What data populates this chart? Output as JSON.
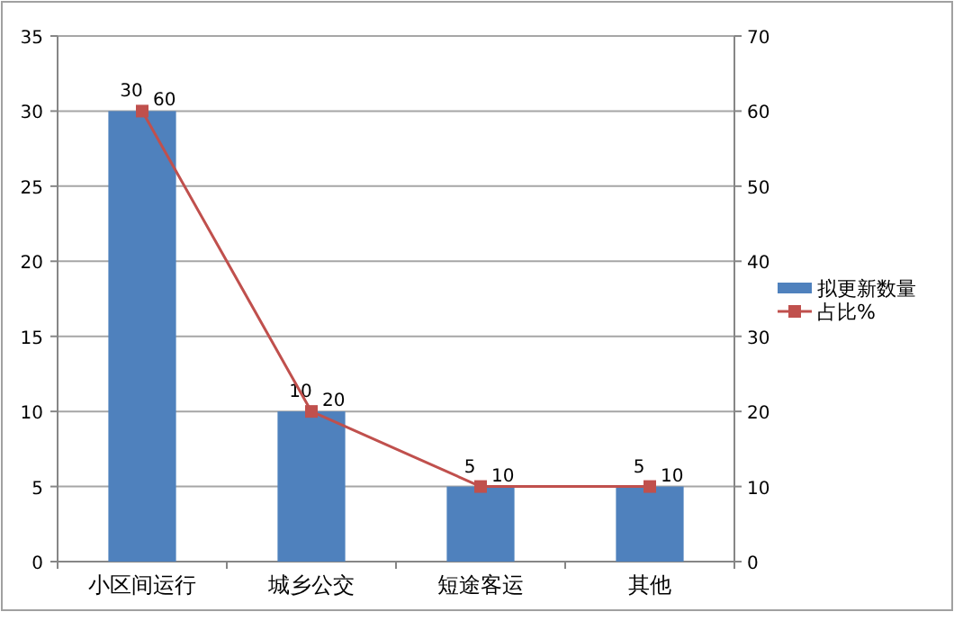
{
  "chart_data": {
    "type": "bar",
    "categories": [
      "小区间运行",
      "城乡公交",
      "短途客运",
      "其他"
    ],
    "series": [
      {
        "name": "拟更新数量",
        "color": "#4f81bd",
        "values": [
          30,
          10,
          5,
          5
        ]
      },
      {
        "name": "占比%",
        "type": "line",
        "axis": "y2",
        "color": "#c0504d",
        "marker": "square",
        "values": [
          60,
          20,
          10,
          10
        ]
      }
    ],
    "ylim": [
      0,
      35
    ],
    "yticks": [
      0,
      5,
      10,
      15,
      20,
      25,
      30,
      35
    ],
    "y2lim": [
      0,
      70
    ],
    "y2ticks": [
      0,
      10,
      20,
      30,
      40,
      50,
      60,
      70
    ],
    "grid": "y",
    "legend": "right",
    "data_labels": true
  }
}
